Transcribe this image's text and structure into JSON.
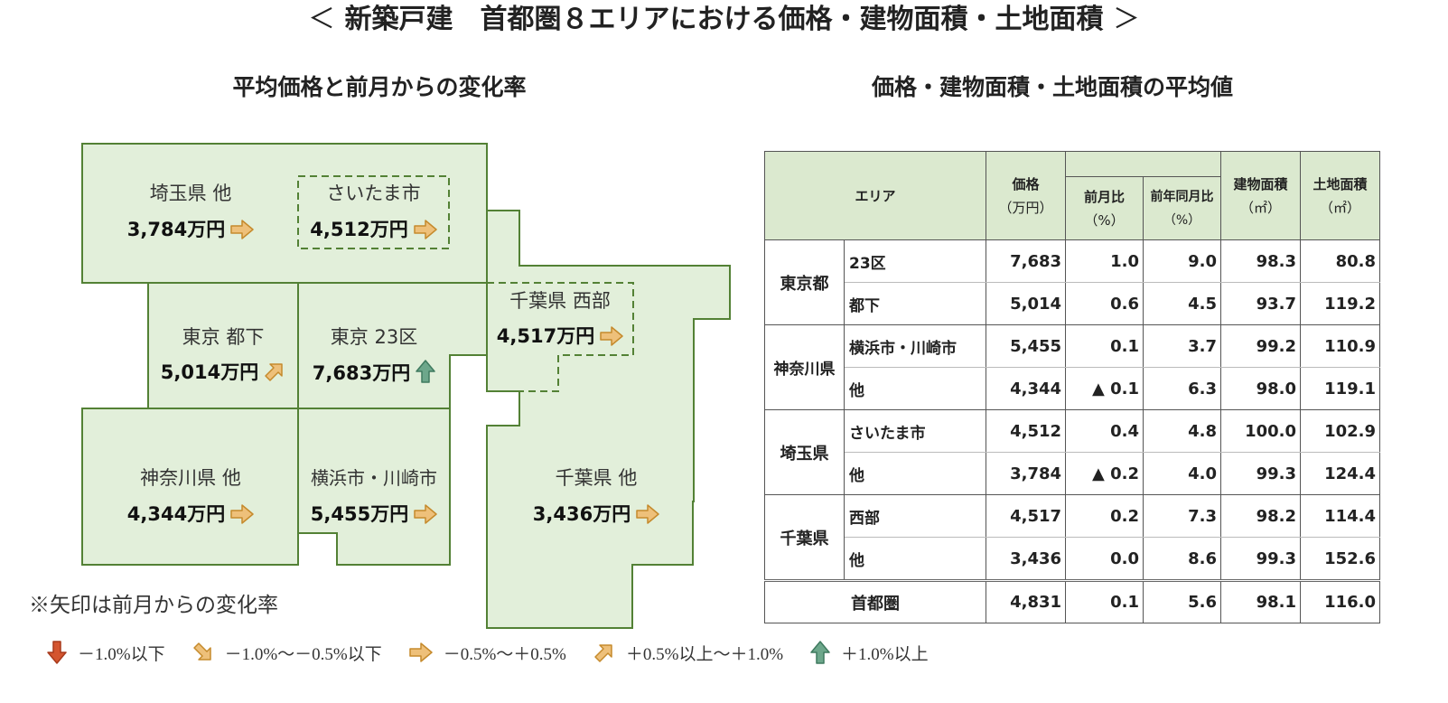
{
  "title": {
    "left_bracket": "＜",
    "text": "新築戸建　首都圏８エリアにおける価格・建物面積・土地面積",
    "right_bracket": "＞"
  },
  "map_section": {
    "title": "平均価格と前月からの変化率",
    "areas": [
      {
        "id": "saitama-other",
        "label": "埼玉県 他",
        "value": "3,784万円",
        "arrow": "flat"
      },
      {
        "id": "saitama-city",
        "label": "さいたま市",
        "value": "4,512万円",
        "arrow": "flat"
      },
      {
        "id": "tokyo-tokashita",
        "label": "東京 都下",
        "value": "5,014万円",
        "arrow": "up-right"
      },
      {
        "id": "tokyo-23",
        "label": "東京 23区",
        "value": "7,683万円",
        "arrow": "up"
      },
      {
        "id": "chiba-west",
        "label": "千葉県 西部",
        "value": "4,517万円",
        "arrow": "flat"
      },
      {
        "id": "kanagawa-other",
        "label": "神奈川県 他",
        "value": "4,344万円",
        "arrow": "flat"
      },
      {
        "id": "yokohama-kawasaki",
        "label": "横浜市・川崎市",
        "value": "5,455万円",
        "arrow": "flat"
      },
      {
        "id": "chiba-other",
        "label": "千葉県 他",
        "value": "3,436万円",
        "arrow": "flat"
      }
    ],
    "note": "※矢印は前月からの変化率",
    "legend": [
      {
        "arrow": "down",
        "text": "－1.0%以下"
      },
      {
        "arrow": "down-right",
        "text": "－1.0%～－0.5%以下"
      },
      {
        "arrow": "flat",
        "text": "－0.5%～＋0.5%"
      },
      {
        "arrow": "up-right",
        "text": "＋0.5%以上～＋1.0%"
      },
      {
        "arrow": "up",
        "text": "＋1.0%以上"
      }
    ]
  },
  "table_section": {
    "title": "価格・建物面積・土地面積の平均値",
    "headers": {
      "area": "エリア",
      "price": "価格",
      "price_unit": "（万円）",
      "mom": "前月比",
      "mom_unit": "（%）",
      "yoy": "前年同月比",
      "yoy_unit": "（%）",
      "building": "建物面積",
      "building_unit": "（㎡）",
      "land": "土地面積",
      "land_unit": "（㎡）"
    },
    "groups": [
      {
        "name": "東京都",
        "rows": [
          {
            "sub": "23区",
            "price": "7,683",
            "mom": "1.0",
            "yoy": "9.0",
            "building": "98.3",
            "land": "80.8"
          },
          {
            "sub": "都下",
            "price": "5,014",
            "mom": "0.6",
            "yoy": "4.5",
            "building": "93.7",
            "land": "119.2"
          }
        ]
      },
      {
        "name": "神奈川県",
        "rows": [
          {
            "sub": "横浜市・川崎市",
            "price": "5,455",
            "mom": "0.1",
            "yoy": "3.7",
            "building": "99.2",
            "land": "110.9"
          },
          {
            "sub": "他",
            "price": "4,344",
            "mom": "▲ 0.1",
            "yoy": "6.3",
            "building": "98.0",
            "land": "119.1"
          }
        ]
      },
      {
        "name": "埼玉県",
        "rows": [
          {
            "sub": "さいたま市",
            "price": "4,512",
            "mom": "0.4",
            "yoy": "4.8",
            "building": "100.0",
            "land": "102.9"
          },
          {
            "sub": "他",
            "price": "3,784",
            "mom": "▲ 0.2",
            "yoy": "4.0",
            "building": "99.3",
            "land": "124.4"
          }
        ]
      },
      {
        "name": "千葉県",
        "rows": [
          {
            "sub": "西部",
            "price": "4,517",
            "mom": "0.2",
            "yoy": "7.3",
            "building": "98.2",
            "land": "114.4"
          },
          {
            "sub": "他",
            "price": "3,436",
            "mom": "0.0",
            "yoy": "8.6",
            "building": "99.3",
            "land": "152.6"
          }
        ]
      }
    ],
    "total": {
      "label": "首都圏",
      "price": "4,831",
      "mom": "0.1",
      "yoy": "5.6",
      "building": "98.1",
      "land": "116.0"
    }
  },
  "colors": {
    "map_fill": "#e2efda",
    "map_border": "#538135",
    "header_fill": "#dbe9cf",
    "arrow_flat": "#e9b25a",
    "arrow_up": "#5e9a80",
    "arrow_down": "#c84a2a"
  }
}
